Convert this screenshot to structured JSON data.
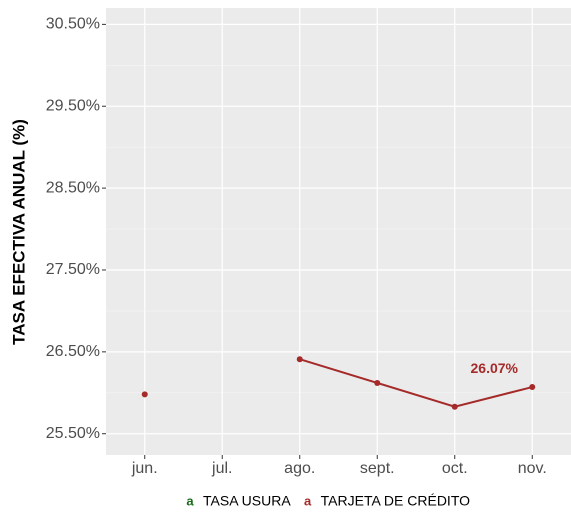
{
  "chart_data": {
    "type": "line",
    "y_label": "TASA EFECTIVA ANUAL (%)",
    "categories": [
      "jun.",
      "jul.",
      "ago.",
      "sept.",
      "oct.",
      "nov."
    ],
    "series": [
      {
        "name": "TASA USURA",
        "color": "#1a6b1a",
        "values": [
          null,
          null,
          null,
          null,
          null,
          null
        ]
      },
      {
        "name": "TARJETA DE CRÉDITO",
        "color": "#a52a2a",
        "values": [
          25.98,
          null,
          26.41,
          26.12,
          25.83,
          26.07
        ],
        "value_labels": [
          null,
          null,
          null,
          null,
          null,
          "26.07%"
        ]
      }
    ],
    "legend_key_glyph": "a",
    "ylim": [
      25.24,
      30.7
    ],
    "yticks": [
      {
        "value": 25.5,
        "label": "25.50%"
      },
      {
        "value": 26.5,
        "label": "26.50%"
      },
      {
        "value": 27.5,
        "label": "27.50%"
      },
      {
        "value": 28.5,
        "label": "28.50%"
      },
      {
        "value": 29.5,
        "label": "29.50%"
      },
      {
        "value": 30.5,
        "label": "30.50%"
      }
    ],
    "grid": true,
    "legend": "bottom"
  }
}
